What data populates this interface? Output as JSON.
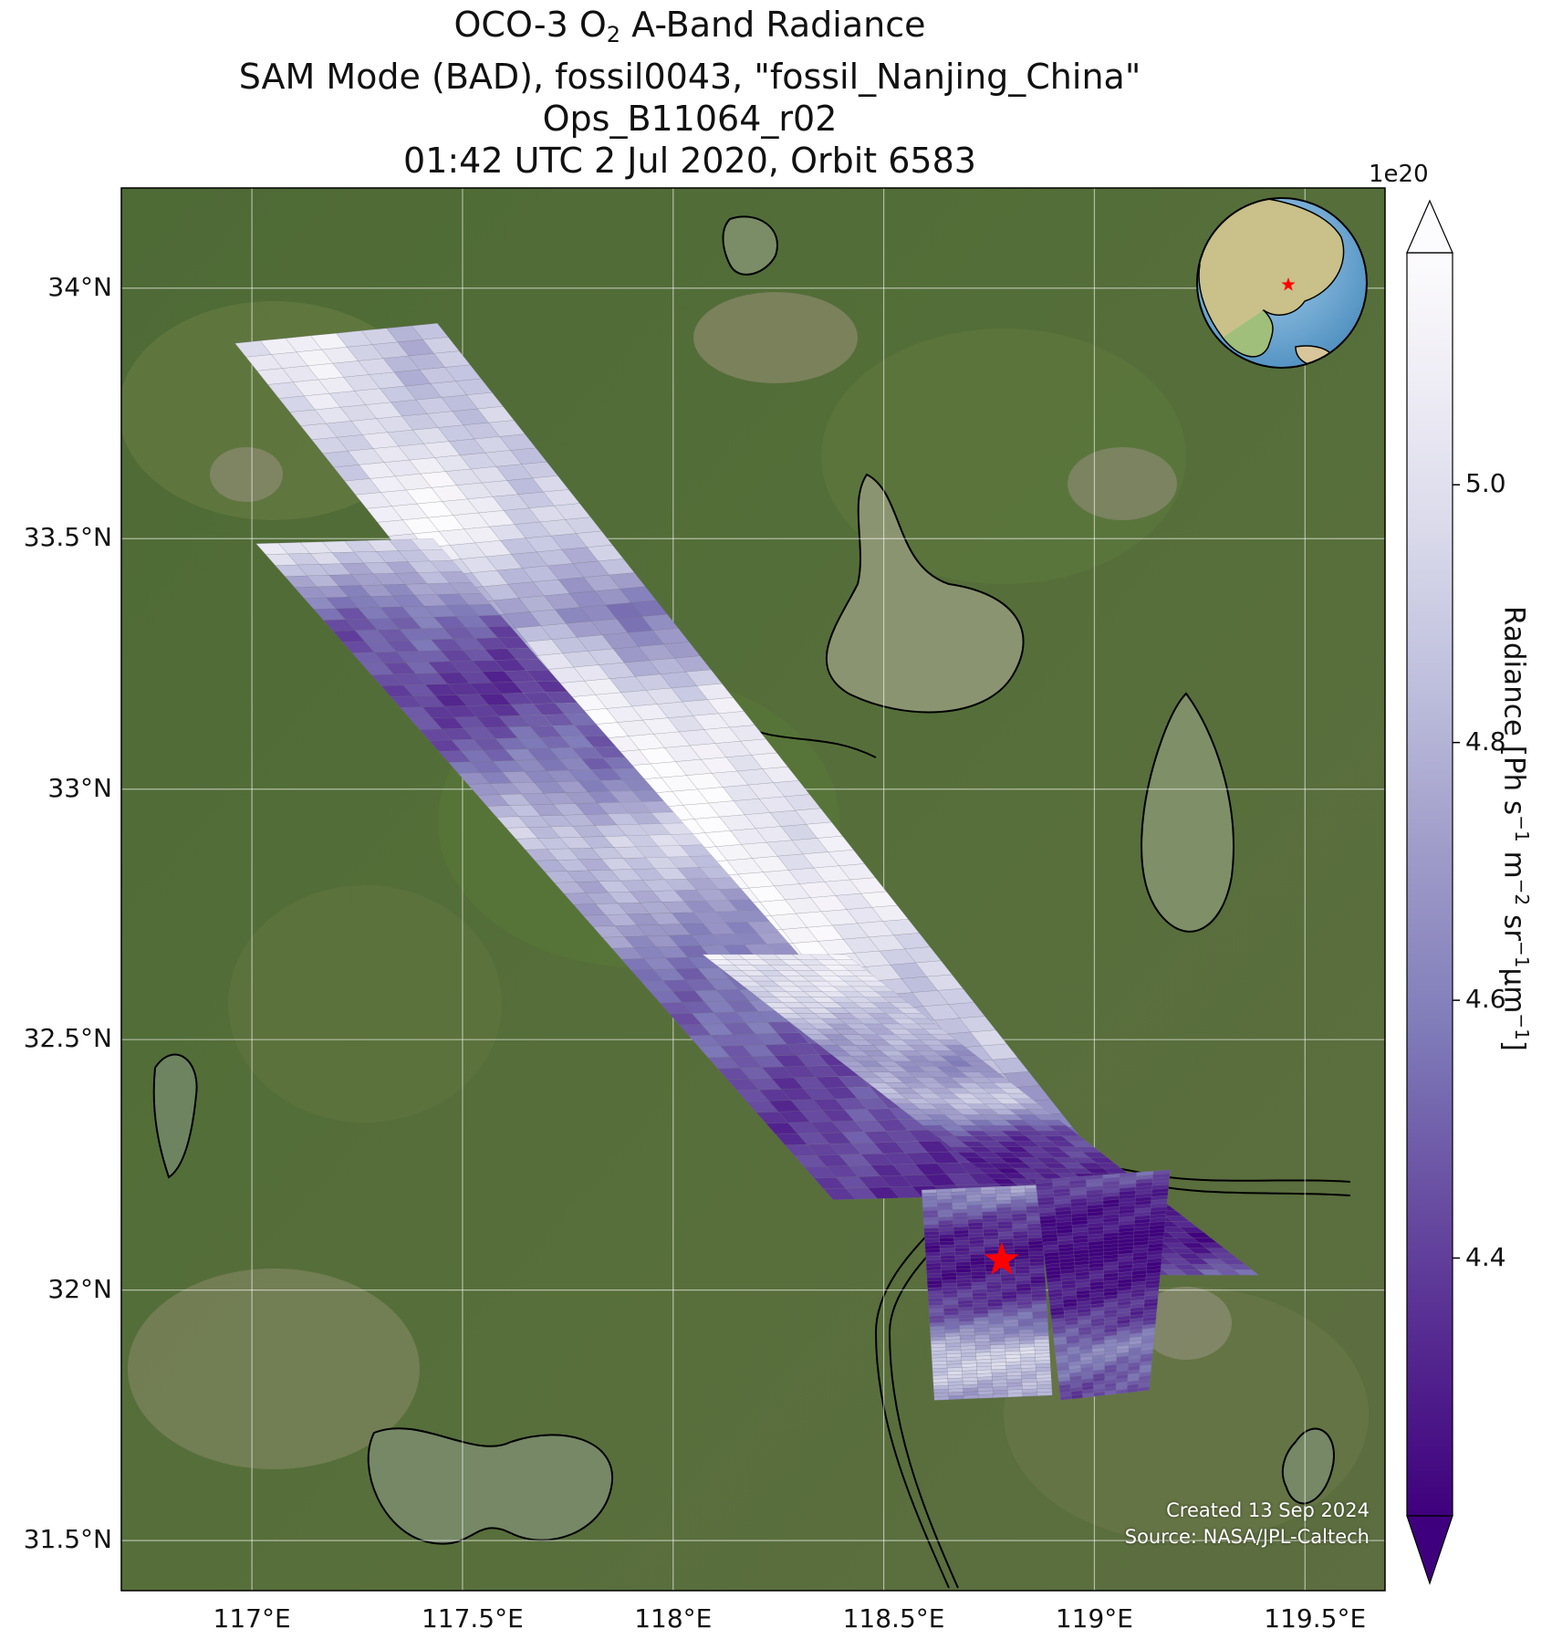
{
  "title": {
    "line1_pre": "OCO-3 O",
    "line1_sub": "2",
    "line1_post": " A-Band Radiance",
    "line2": "SAM Mode (BAD), fossil0043, \"fossil_Nanjing_China\"",
    "line3": "Ops_B11064_r02",
    "line4": "01:42 UTC 2 Jul 2020, Orbit 6583"
  },
  "axes": {
    "lon_ticks": [
      117.0,
      117.5,
      118.0,
      118.5,
      119.0,
      119.5
    ],
    "lon_labels": [
      "117°E",
      "117.5°E",
      "118°E",
      "118.5°E",
      "119°E",
      "119.5°E"
    ],
    "lat_ticks": [
      34.0,
      33.5,
      33.0,
      32.5,
      32.0,
      31.5
    ],
    "lat_labels": [
      "34°N",
      "33.5°N",
      "33°N",
      "32.5°N",
      "32°N",
      "31.5°N"
    ],
    "lon_range": [
      116.69,
      119.69
    ],
    "lat_range": [
      31.4,
      34.2
    ]
  },
  "colorbar": {
    "label_pre": "Radiance [Ph s",
    "exponent_label": "1e20",
    "ticks": [
      5.0,
      4.8,
      4.6,
      4.4
    ],
    "tick_labels": [
      "5.0",
      "4.8",
      "4.6",
      "4.4"
    ],
    "range": [
      4.2,
      5.18
    ],
    "colormap": [
      "#3f007d",
      "#54278f",
      "#6a51a3",
      "#807dba",
      "#9e9ac8",
      "#bcbddc",
      "#dadaeb",
      "#efedf5",
      "#fcfbfd"
    ],
    "extend": "both"
  },
  "target": {
    "lon": 118.78,
    "lat": 32.06,
    "color": "#ff0000"
  },
  "credits": {
    "created": "Created 13 Sep 2024",
    "source": "Source: NASA/JPL-Caltech"
  },
  "swaths": [
    {
      "corners": [
        [
          116.96,
          33.89
        ],
        [
          117.44,
          33.93
        ],
        [
          119.0,
          32.27
        ],
        [
          118.52,
          32.24
        ]
      ],
      "profile": [
        4.95,
        4.9,
        5.05,
        4.62,
        5.08,
        5.1,
        5.12,
        5.0,
        4.85,
        4.55
      ],
      "colorShift": 0.1
    },
    {
      "corners": [
        [
          117.01,
          33.49
        ],
        [
          117.43,
          33.5
        ],
        [
          118.8,
          32.19
        ],
        [
          118.38,
          32.18
        ]
      ],
      "profile": [
        4.95,
        4.5,
        4.38,
        4.55,
        4.9,
        4.7,
        4.55,
        4.45,
        4.4,
        4.35
      ],
      "colorShift": 0.0
    },
    {
      "corners": [
        [
          118.07,
          32.67
        ],
        [
          118.41,
          32.67
        ],
        [
          119.39,
          32.03
        ],
        [
          119.05,
          32.03
        ]
      ],
      "profile": [
        5.05,
        4.95,
        4.8,
        4.65,
        4.85,
        4.4,
        4.3,
        4.25,
        4.3,
        4.5
      ],
      "colorShift": 0.0
    },
    {
      "corners": [
        [
          118.59,
          32.2
        ],
        [
          118.87,
          32.21
        ],
        [
          118.9,
          31.79
        ],
        [
          118.62,
          31.78
        ]
      ],
      "profile": [
        4.7,
        4.45,
        4.3,
        4.25,
        4.3,
        4.4,
        4.6,
        4.9,
        4.85,
        4.7
      ],
      "colorShift": 0.0
    },
    {
      "corners": [
        [
          118.86,
          32.22
        ],
        [
          119.18,
          32.24
        ],
        [
          119.13,
          31.8
        ],
        [
          118.92,
          31.78
        ]
      ],
      "profile": [
        4.45,
        4.3,
        4.25,
        4.2,
        4.25,
        4.3,
        4.4,
        4.6,
        4.5,
        4.4
      ],
      "colorShift": 0.0
    }
  ]
}
